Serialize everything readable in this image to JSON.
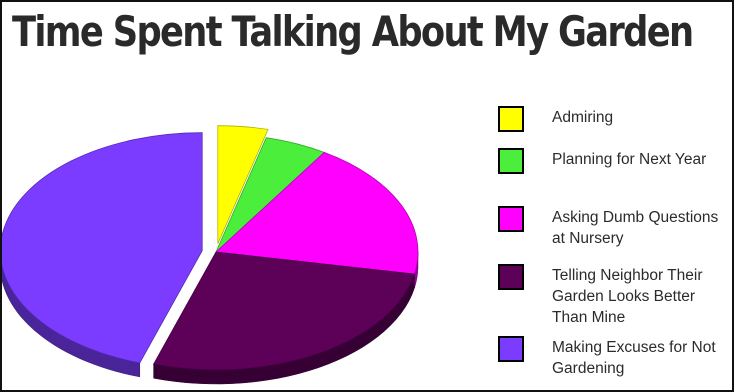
{
  "chart_data": {
    "type": "pie",
    "title": "Time Spent Talking About My Garden",
    "categories": [
      "Admiring",
      "Planning for Next Year",
      "Asking Dumb Questions at Nursery",
      "Telling Neighbor Their Garden Looks Better Than Mine",
      "Making Excuses for Not Gardening"
    ],
    "values": [
      4,
      5,
      19,
      27,
      45
    ],
    "unit": "percent (estimated)",
    "colors": [
      "#ffff00",
      "#4cee3c",
      "#ff00ff",
      "#5c0058",
      "#7b3cff"
    ],
    "exploded": [
      "Admiring",
      "Making Excuses for Not Gardening"
    ],
    "style": "3d-tilted",
    "legend_position": "right"
  }
}
